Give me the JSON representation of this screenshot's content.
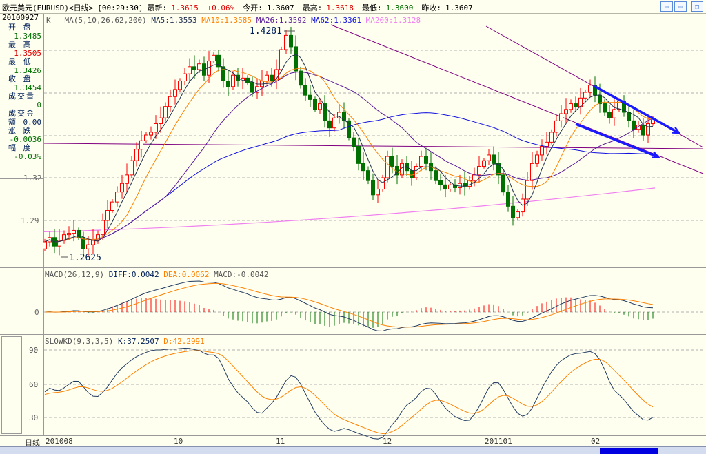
{
  "title": {
    "symbol": "欧元美元(EURUSD)<日线>",
    "time": "[00:29:30]",
    "latest_label": "最新:",
    "latest": "1.3615",
    "change": "+0.06%",
    "open_label": "今开:",
    "open": "1.3607",
    "high_label": "最高:",
    "high": "1.3618",
    "low_label": "最低:",
    "low": "1.3600",
    "prev_label": "昨收:",
    "prev": "1.3607"
  },
  "nav": {
    "prev_icon": "arrow-left-icon",
    "next_icon": "arrow-right-icon",
    "restore_icon": "window-restore-icon",
    "prev": "⇦",
    "next": "⇨",
    "restore": "❐"
  },
  "info": {
    "date": "20100927",
    "items": [
      {
        "label": "开 盘",
        "value": "1.3485",
        "color": "#007000"
      },
      {
        "label": "最 高",
        "value": "1.3505",
        "color": "#e00000"
      },
      {
        "label": "最 低",
        "value": "1.3426",
        "color": "#007000"
      },
      {
        "label": "收 盘",
        "value": "1.3454",
        "color": "#007000"
      },
      {
        "label": "成交量",
        "value": "0",
        "color": "#007000"
      },
      {
        "label": "成交金额",
        "value": "0.00",
        "color": "#00205a"
      },
      {
        "label": "涨 跌",
        "value": "-0.0036",
        "color": "#007000"
      },
      {
        "label": "幅 度",
        "value": "-0.03%",
        "color": "#007000"
      }
    ]
  },
  "main": {
    "type_label": "K",
    "ma_label": "MA(5,10,26,62,200)",
    "ma5": "MA5:1.3553",
    "ma10": "MA10:1.3585",
    "ma26": "MA26:1.3592",
    "ma62": "MA62:1.3361",
    "ma200": "MA200:1.3128",
    "colors": {
      "ma5": "#203050",
      "ma10": "#ff8000",
      "ma26": "#5a1a9a",
      "ma62": "#1010e0",
      "ma200": "#f080f0",
      "up": "#ff0000",
      "down": "#007000",
      "trend": "#800080",
      "arrow": "#1a1aff"
    },
    "y_ticks": [
      "1.32",
      "1.29"
    ],
    "y_tick_values": [
      1.32,
      1.29
    ],
    "high_annotation": "1.4281",
    "low_annotation": "1.2625"
  },
  "macd": {
    "label": "MACD(26,12,9)",
    "diff": "DIFF:0.0042",
    "dea": "DEA:0.0062",
    "macd": "MACD:-0.0042",
    "zero_label": "0"
  },
  "kd": {
    "label": "SLOWKD(9,3,3,5)",
    "k": "K:37.2507",
    "d": "D:42.2991",
    "ticks": [
      "90",
      "60",
      "30"
    ]
  },
  "xaxis": {
    "period": "日线",
    "labels": [
      "201008",
      "10",
      "11",
      "12",
      "201101",
      "02"
    ]
  },
  "chart_data": {
    "type": "candlestick",
    "closes": [
      1.275,
      1.278,
      1.272,
      1.276,
      1.28,
      1.281,
      1.283,
      1.278,
      1.27,
      1.273,
      1.276,
      1.28,
      1.29,
      1.297,
      1.303,
      1.31,
      1.316,
      1.322,
      1.332,
      1.34,
      1.346,
      1.35,
      1.352,
      1.358,
      1.362,
      1.37,
      1.377,
      1.382,
      1.388,
      1.393,
      1.398,
      1.396,
      1.4,
      1.392,
      1.402,
      1.406,
      1.398,
      1.388,
      1.384,
      1.392,
      1.388,
      1.39,
      1.387,
      1.38,
      1.384,
      1.388,
      1.392,
      1.388,
      1.396,
      1.41,
      1.42,
      1.412,
      1.395,
      1.385,
      1.378,
      1.375,
      1.368,
      1.372,
      1.36,
      1.355,
      1.362,
      1.366,
      1.36,
      1.348,
      1.342,
      1.33,
      1.325,
      1.318,
      1.308,
      1.312,
      1.32,
      1.335,
      1.328,
      1.322,
      1.33,
      1.325,
      1.32,
      1.328,
      1.335,
      1.33,
      1.325,
      1.318,
      1.315,
      1.312,
      1.315,
      1.313,
      1.316,
      1.314,
      1.318,
      1.322,
      1.328,
      1.332,
      1.336,
      1.33,
      1.322,
      1.31,
      1.3,
      1.292,
      1.296,
      1.305,
      1.318,
      1.33,
      1.336,
      1.342,
      1.345,
      1.352,
      1.36,
      1.365,
      1.368,
      1.372,
      1.37,
      1.376,
      1.38,
      1.385,
      1.378,
      1.372,
      1.366,
      1.362,
      1.368,
      1.374,
      1.366,
      1.36,
      1.354,
      1.357,
      1.35,
      1.358,
      1.3615
    ],
    "first_open": 1.27,
    "ma200_range": [
      1.283,
      1.3128
    ],
    "kd_range": [
      0,
      100
    ]
  }
}
